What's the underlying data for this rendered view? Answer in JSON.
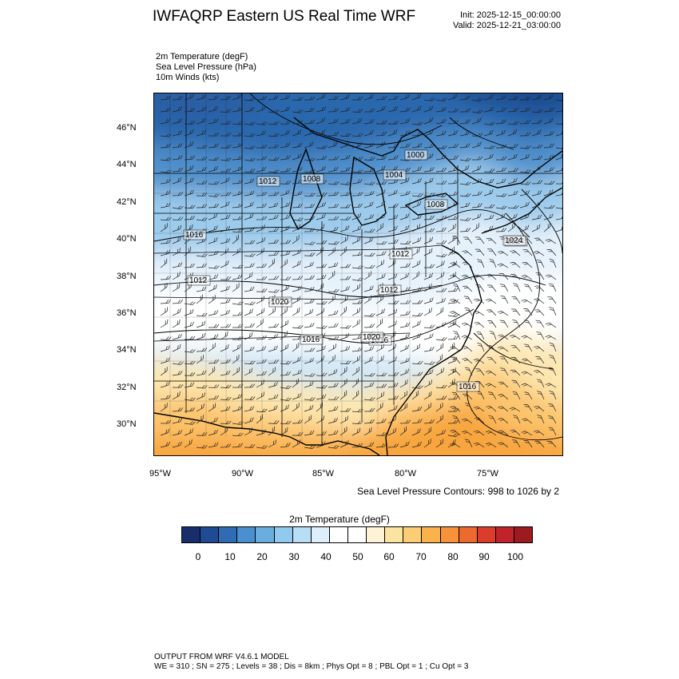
{
  "header": {
    "title": "IWFAQRP Eastern US Real Time WRF",
    "init": "Init: 2025-12-15_00:00:00",
    "valid": "Valid: 2025-12-21_03:00:00"
  },
  "fields": [
    "2m Temperature   (degF)",
    "Sea Level Pressure   (hPa)",
    "10m Winds   (kts)"
  ],
  "map": {
    "lat_labels": [
      "46°N",
      "44°N",
      "42°N",
      "40°N",
      "38°N",
      "36°N",
      "34°N",
      "32°N",
      "30°N"
    ],
    "lon_labels": [
      "95°W",
      "90°W",
      "85°W",
      "80°W",
      "75°W"
    ],
    "pressure_labels": [
      "1012",
      "1008",
      "1004",
      "1000",
      "1008",
      "1016",
      "1012",
      "1020",
      "1024",
      "1012",
      "1012",
      "1016",
      "1016",
      "1020",
      "1016",
      "1024"
    ]
  },
  "contour_note": "Sea Level Pressure Contours: 998 to 1026 by 2",
  "colorbar": {
    "title": "2m Temperature  (degF)",
    "tick_labels": [
      "0",
      "10",
      "20",
      "30",
      "40",
      "50",
      "60",
      "70",
      "80",
      "90",
      "100"
    ],
    "colors": [
      "#182e6b",
      "#1f4b94",
      "#2f6cb3",
      "#4a8fcf",
      "#6aaee0",
      "#92c9ee",
      "#b8def5",
      "#ddeffb",
      "#ffffff",
      "#ffffff",
      "#fff3d6",
      "#fde3a0",
      "#fccd74",
      "#fbb24a",
      "#f7923b",
      "#ec6a30",
      "#db3d2b",
      "#c0242a",
      "#9b1b1f"
    ]
  },
  "footer": {
    "line1": "OUTPUT FROM WRF V4.6.1 MODEL",
    "line2": "WE = 310 ; SN = 275 ; Levels = 38 ; Dis = 8km ; Phys Opt = 8 ; PBL Opt = 1 ; Cu Opt = 3"
  }
}
